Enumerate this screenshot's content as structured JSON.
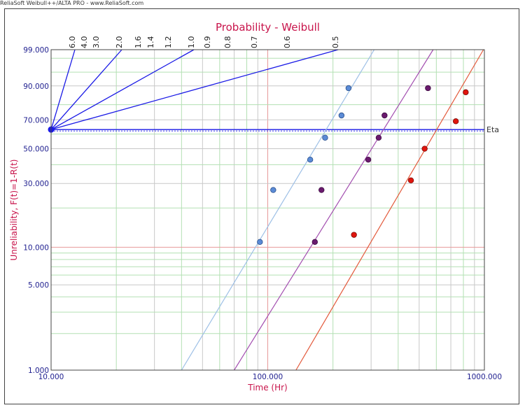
{
  "watermark": "ReliaSoft Weibull++/ALTA PRO - www.ReliaSoft.com",
  "colors": {
    "title": "#c8144b",
    "axis_text": "#1f1f8f",
    "beta_lines": "#1a1ae6",
    "eta_line": "#1a1ae6",
    "grid_major": "#e79a9a",
    "grid_minor_green": "#b3e0b3",
    "grid_minor_gray": "#c8c8c8",
    "series_blue": "#5b8bd6",
    "series_blue_line": "#9ec0e6",
    "series_purple": "#6a1a6e",
    "series_purple_line": "#a34fb0",
    "series_red": "#e0150e",
    "series_red_line": "#e35a3c"
  },
  "chart_data": {
    "type": "scatter",
    "title": "Probability - Weibull",
    "xlabel": "Time (Hr)",
    "ylabel": "Unreliability, F(t)=1-R(t)",
    "x_scale": "log",
    "y_scale": "weibull",
    "xlim": [
      10,
      1000
    ],
    "ylim": [
      1,
      99
    ],
    "x_ticks": [
      {
        "value": 10,
        "label": "10.000"
      },
      {
        "value": 100,
        "label": "100.000"
      },
      {
        "value": 1000,
        "label": "1000.000"
      }
    ],
    "y_ticks": [
      {
        "value": 1,
        "label": "1.000"
      },
      {
        "value": 5,
        "label": "5.000"
      },
      {
        "value": 10,
        "label": "10.000"
      },
      {
        "value": 30,
        "label": "30.000"
      },
      {
        "value": 50,
        "label": "50.000"
      },
      {
        "value": 70,
        "label": "70.000"
      },
      {
        "value": 90,
        "label": "90.000"
      },
      {
        "value": 99,
        "label": "99.000"
      }
    ],
    "beta_scale": {
      "labels": [
        "6.0",
        "4.0",
        "3.0",
        "2.0",
        "1.6",
        "1.4",
        "1.2",
        "1.0",
        "0.9",
        "0.8",
        "0.7",
        "0.6",
        "0.5"
      ],
      "drawn_lines": [
        6.0,
        2.0,
        1.0,
        0.5
      ]
    },
    "eta_label": "Eta",
    "grid": true,
    "series": [
      {
        "points": [
          {
            "x": 92,
            "y": 11
          },
          {
            "x": 106,
            "y": 27
          },
          {
            "x": 157,
            "y": 43
          },
          {
            "x": 184,
            "y": 57.5
          },
          {
            "x": 219,
            "y": 73
          },
          {
            "x": 236,
            "y": 89
          }
        ],
        "fit_line": [
          {
            "x": 40,
            "y": 1
          },
          {
            "x": 310,
            "y": 99
          }
        ]
      },
      {
        "points": [
          {
            "x": 165,
            "y": 11
          },
          {
            "x": 177,
            "y": 27
          },
          {
            "x": 291,
            "y": 43
          },
          {
            "x": 325,
            "y": 57.5
          },
          {
            "x": 346,
            "y": 73
          },
          {
            "x": 549,
            "y": 89
          }
        ],
        "fit_line": [
          {
            "x": 70,
            "y": 1
          },
          {
            "x": 580,
            "y": 99
          }
        ]
      },
      {
        "points": [
          {
            "x": 250,
            "y": 12.5
          },
          {
            "x": 458,
            "y": 31.5
          },
          {
            "x": 530,
            "y": 50
          },
          {
            "x": 738,
            "y": 69
          },
          {
            "x": 820,
            "y": 87
          }
        ],
        "fit_line": [
          {
            "x": 135,
            "y": 1
          },
          {
            "x": 990,
            "y": 99
          }
        ]
      }
    ]
  }
}
